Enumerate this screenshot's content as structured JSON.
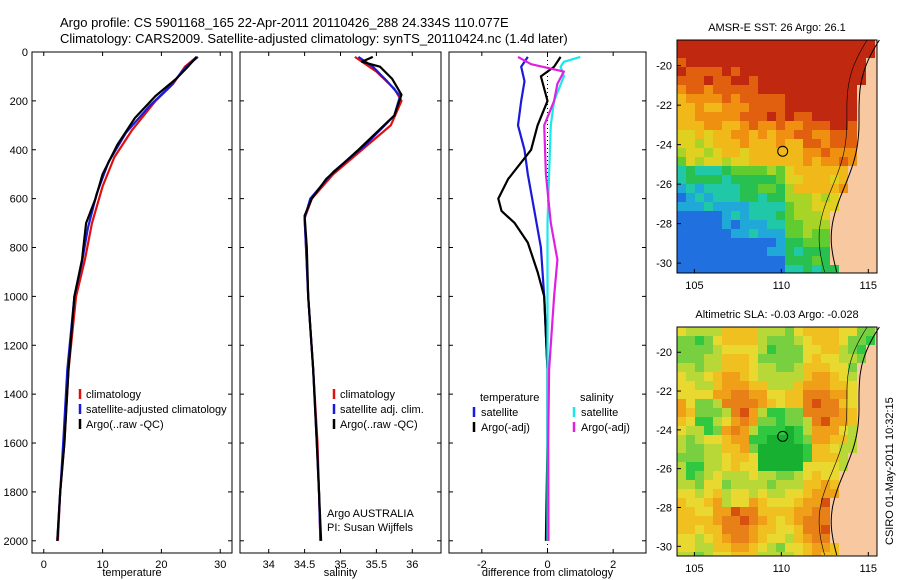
{
  "title_line1": "Argo profile: CS 5901168_165 22-Apr-2011 20110426_288 24.334S 110.077E",
  "title_line2": "Climatology: CARS2009. Satellite-adjusted climatology: synTS_20110424.nc (1.4d later)",
  "side_text": "CSIRO 01-May-2011 10:32:15",
  "credit_line1": "Argo AUSTRALIA",
  "credit_line2": "PI: Susan Wijffels",
  "colors": {
    "red": "#e01010",
    "blue": "#1a1adc",
    "black": "#000000",
    "cyan": "#18e8e8",
    "magenta": "#e020e0",
    "land": "#f8c8a0"
  },
  "chart_data": [
    {
      "type": "line",
      "xlabel": "temperature",
      "ylim": [
        2050,
        0
      ],
      "xlim": [
        -2,
        32
      ],
      "yticks": [
        "0",
        "200",
        "400",
        "600",
        "800",
        "1000",
        "1200",
        "1400",
        "1600",
        "1800",
        "2000"
      ],
      "xticks": [
        "0",
        "10",
        "20",
        "30"
      ],
      "legend": [
        "climatology",
        "satellite-adjusted climatology",
        "Argo(..raw -QC)"
      ],
      "series": [
        {
          "name": "climatology",
          "color": "red",
          "points": [
            [
              26,
              20
            ],
            [
              24,
              60
            ],
            [
              22,
              130
            ],
            [
              19,
              200
            ],
            [
              15,
              320
            ],
            [
              12,
              430
            ],
            [
              10,
              550
            ],
            [
              8.2,
              700
            ],
            [
              7,
              850
            ],
            [
              5.5,
              1000
            ],
            [
              4.2,
              1300
            ],
            [
              3.5,
              1600
            ],
            [
              2.8,
              1800
            ],
            [
              2.4,
              2000
            ]
          ]
        },
        {
          "name": "satellite-adjusted climatology",
          "color": "blue",
          "points": [
            [
              26.2,
              20
            ],
            [
              24.2,
              60
            ],
            [
              21.5,
              140
            ],
            [
              18,
              220
            ],
            [
              14,
              330
            ],
            [
              11,
              450
            ],
            [
              9,
              580
            ],
            [
              7.5,
              720
            ],
            [
              6.5,
              860
            ],
            [
              5.2,
              1000
            ],
            [
              4,
              1300
            ],
            [
              3.3,
              1600
            ],
            [
              2.8,
              1800
            ],
            [
              2.3,
              2000
            ]
          ]
        },
        {
          "name": "Argo(..raw -QC)",
          "color": "black",
          "points": [
            [
              26,
              20
            ],
            [
              24.5,
              60
            ],
            [
              22.5,
              110
            ],
            [
              19,
              180
            ],
            [
              15.5,
              270
            ],
            [
              12.5,
              380
            ],
            [
              10,
              500
            ],
            [
              8.8,
              600
            ],
            [
              7.2,
              700
            ],
            [
              6.5,
              850
            ],
            [
              5.2,
              1000
            ],
            [
              4.2,
              1300
            ],
            [
              3.5,
              1600
            ],
            [
              2.8,
              1800
            ],
            [
              2.3,
              2000
            ]
          ]
        }
      ]
    },
    {
      "type": "line",
      "xlabel": "salinity",
      "ylim": [
        2050,
        0
      ],
      "xlim": [
        33.6,
        36.4
      ],
      "xticks": [
        "34",
        "34.5",
        "35",
        "35.5",
        "36"
      ],
      "legend": [
        "climatology",
        "satellite adj. clim.",
        "Argo(..raw -QC)"
      ],
      "series": [
        {
          "name": "climatology",
          "color": "red",
          "points": [
            [
              35.2,
              20
            ],
            [
              35.5,
              80
            ],
            [
              35.75,
              150
            ],
            [
              35.85,
              200
            ],
            [
              35.7,
              300
            ],
            [
              35.3,
              400
            ],
            [
              34.9,
              500
            ],
            [
              34.6,
              600
            ],
            [
              34.5,
              680
            ],
            [
              34.52,
              800
            ],
            [
              34.55,
              1000
            ],
            [
              34.62,
              1300
            ],
            [
              34.68,
              1600
            ],
            [
              34.7,
              1800
            ],
            [
              34.72,
              2000
            ]
          ]
        },
        {
          "name": "satellite adj. clim.",
          "color": "blue",
          "points": [
            [
              35.25,
              20
            ],
            [
              35.45,
              60
            ],
            [
              35.65,
              120
            ],
            [
              35.83,
              180
            ],
            [
              35.75,
              260
            ],
            [
              35.35,
              380
            ],
            [
              34.9,
              490
            ],
            [
              34.58,
              600
            ],
            [
              34.5,
              680
            ],
            [
              34.52,
              800
            ],
            [
              34.55,
              1000
            ],
            [
              34.62,
              1300
            ],
            [
              34.67,
              1600
            ],
            [
              34.7,
              1800
            ],
            [
              34.72,
              2000
            ]
          ]
        },
        {
          "name": "Argo(..raw -QC)",
          "color": "black",
          "points": [
            [
              35.45,
              20
            ],
            [
              35.3,
              40
            ],
            [
              35.55,
              60
            ],
            [
              35.72,
              110
            ],
            [
              35.85,
              175
            ],
            [
              35.75,
              260
            ],
            [
              35.25,
              400
            ],
            [
              34.8,
              520
            ],
            [
              34.6,
              600
            ],
            [
              34.5,
              670
            ],
            [
              34.53,
              800
            ],
            [
              34.55,
              1000
            ],
            [
              34.62,
              1300
            ],
            [
              34.67,
              1600
            ],
            [
              34.7,
              1800
            ],
            [
              34.73,
              2000
            ]
          ]
        }
      ]
    },
    {
      "type": "line",
      "xlabel": "difference from climatology",
      "ylim": [
        2050,
        0
      ],
      "xlim": [
        -3,
        3
      ],
      "xticks": [
        "-2",
        "0",
        "2"
      ],
      "legend": [
        "temperature",
        "satellite",
        "Argo(-adj)",
        "salinity",
        "satellite",
        "Argo(-adj)"
      ],
      "series": [
        {
          "name": "satellite",
          "color": "blue",
          "points": [
            [
              -0.6,
              20
            ],
            [
              -0.8,
              60
            ],
            [
              -0.7,
              120
            ],
            [
              -0.8,
              200
            ],
            [
              -0.9,
              300
            ],
            [
              -0.7,
              400
            ],
            [
              -0.6,
              500
            ],
            [
              -0.4,
              650
            ],
            [
              -0.2,
              800
            ],
            [
              -0.1,
              1000
            ],
            [
              0,
              1300
            ],
            [
              0,
              1600
            ],
            [
              0.02,
              2000
            ]
          ]
        },
        {
          "name": "Argo(-adj)",
          "color": "black",
          "points": [
            [
              0.4,
              20
            ],
            [
              0.2,
              60
            ],
            [
              -0.2,
              100
            ],
            [
              0,
              200
            ],
            [
              -0.3,
              300
            ],
            [
              -0.5,
              400
            ],
            [
              -1.2,
              520
            ],
            [
              -1.5,
              600
            ],
            [
              -1.4,
              650
            ],
            [
              -1.0,
              700
            ],
            [
              -0.6,
              780
            ],
            [
              -0.3,
              900
            ],
            [
              -0.1,
              1000
            ],
            [
              0,
              1300
            ],
            [
              0,
              1600
            ],
            [
              -0.05,
              2000
            ]
          ]
        },
        {
          "name": "satellite",
          "color": "cyan",
          "points": [
            [
              1.0,
              20
            ],
            [
              0.5,
              40
            ],
            [
              0.4,
              60
            ],
            [
              0.5,
              100
            ],
            [
              0.2,
              200
            ],
            [
              0.1,
              300
            ],
            [
              0.05,
              500
            ],
            [
              0,
              700
            ],
            [
              0,
              1000
            ],
            [
              0,
              1500
            ],
            [
              0,
              2000
            ]
          ]
        },
        {
          "name": "Argo(-adj)",
          "color": "magenta",
          "points": [
            [
              -0.9,
              20
            ],
            [
              -0.5,
              50
            ],
            [
              0.5,
              80
            ],
            [
              0.3,
              130
            ],
            [
              0.2,
              200
            ],
            [
              -0.1,
              300
            ],
            [
              -0.05,
              500
            ],
            [
              0.1,
              700
            ],
            [
              0.3,
              850
            ],
            [
              0.2,
              1000
            ],
            [
              0.05,
              1300
            ],
            [
              0.02,
              1600
            ],
            [
              0.03,
              2000
            ]
          ]
        }
      ]
    },
    {
      "type": "heatmap",
      "title": "AMSR-E SST: 26 Argo: 26.1",
      "xticks": [
        "105",
        "110",
        "115"
      ],
      "yticks": [
        "-20",
        "-22",
        "-24",
        "-26",
        "-28",
        "-30"
      ],
      "xlim": [
        104,
        115.5
      ],
      "ylim": [
        -30.5,
        -18.7
      ],
      "marker": [
        110.077,
        -24.334
      ]
    },
    {
      "type": "heatmap",
      "title": "Altimetric SLA: -0.03 Argo: -0.028",
      "xticks": [
        "105",
        "110",
        "115"
      ],
      "yticks": [
        "-20",
        "-22",
        "-24",
        "-26",
        "-28",
        "-30"
      ],
      "xlim": [
        104,
        115.5
      ],
      "ylim": [
        -30.5,
        -18.7
      ],
      "marker": [
        110.077,
        -24.334
      ]
    }
  ]
}
